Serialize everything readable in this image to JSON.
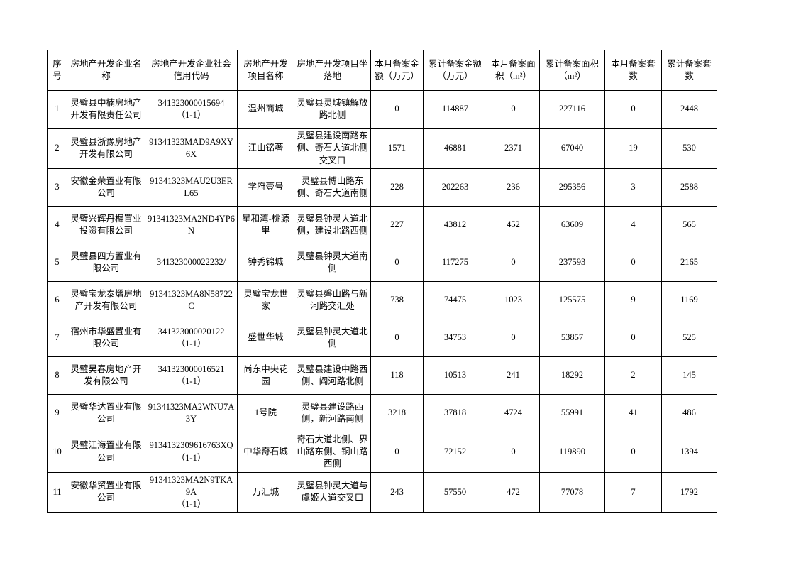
{
  "page": {
    "background_color": "#ffffff",
    "border_color": "#000000"
  },
  "table": {
    "columns": [
      {
        "key": "seq",
        "label": "序号"
      },
      {
        "key": "company",
        "label": "房地产开发企业名称"
      },
      {
        "key": "credit_code",
        "label": "房地产开发企业社会信用代码"
      },
      {
        "key": "project",
        "label": "房地产开发项目名称"
      },
      {
        "key": "location",
        "label": "房地产开发项目坐落地"
      },
      {
        "key": "month_amount",
        "label": "本月备案金额（万元）"
      },
      {
        "key": "total_amount",
        "label": "累计备案金额（万元）"
      },
      {
        "key": "month_area",
        "label": "本月备案面积（m²）"
      },
      {
        "key": "total_area",
        "label": "累计备案面积（m²）"
      },
      {
        "key": "month_units",
        "label": "本月备案套数"
      },
      {
        "key": "total_units",
        "label": "累计备案套数"
      }
    ],
    "rows": [
      {
        "seq": "1",
        "company": "灵璧县中楠房地产开发有限责任公司",
        "credit_code": "341323000015694\n（1-1）",
        "project": "温州商城",
        "location": "灵璧县灵城镇解放路北侧",
        "month_amount": "0",
        "total_amount": "114887",
        "month_area": "0",
        "total_area": "227116",
        "month_units": "0",
        "total_units": "2448"
      },
      {
        "seq": "2",
        "company": "灵璧县浙豫房地产开发有限公司",
        "credit_code": "91341323MAD9A9XY6X",
        "project": "江山铭著",
        "location": "灵璧县建设南路东侧、奇石大道北侧交叉口",
        "month_amount": "1571",
        "total_amount": "46881",
        "month_area": "2371",
        "total_area": "67040",
        "month_units": "19",
        "total_units": "530"
      },
      {
        "seq": "3",
        "company": "安徽金荣置业有限公司",
        "credit_code": "91341323MAU2U3ERL65",
        "project": "学府壹号",
        "location": "灵璧县博山路东侧、奇石大道南侧",
        "month_amount": "228",
        "total_amount": "202263",
        "month_area": "236",
        "total_area": "295356",
        "month_units": "3",
        "total_units": "2588"
      },
      {
        "seq": "4",
        "company": "灵璧兴辉丹樨置业投资有限公司",
        "credit_code": "91341323MA2ND4YP6N",
        "project": "星和湾-桃源里",
        "location": "灵璧县钟灵大道北侧，建设北路西侧",
        "month_amount": "227",
        "total_amount": "43812",
        "month_area": "452",
        "total_area": "63609",
        "month_units": "4",
        "total_units": "565"
      },
      {
        "seq": "5",
        "company": "灵璧县四方置业有限公司",
        "credit_code": "341323000022232/",
        "project": "钟秀锦城",
        "location": "灵璧县钟灵大道南侧",
        "month_amount": "0",
        "total_amount": "117275",
        "month_area": "0",
        "total_area": "237593",
        "month_units": "0",
        "total_units": "2165"
      },
      {
        "seq": "6",
        "company": "灵璧宝龙泰熠房地产开发有限公司",
        "credit_code": "91341323MA8N58722C",
        "project": "灵璧宝龙世家",
        "location": "灵璧县磐山路与新河路交汇处",
        "month_amount": "738",
        "total_amount": "74475",
        "month_area": "1023",
        "total_area": "125575",
        "month_units": "9",
        "total_units": "1169"
      },
      {
        "seq": "7",
        "company": "宿州市华盛置业有限公司",
        "credit_code": "341323000020122\n（1-1）",
        "project": "盛世华城",
        "location": "灵璧县钟灵大道北侧",
        "month_amount": "0",
        "total_amount": "34753",
        "month_area": "0",
        "total_area": "53857",
        "month_units": "0",
        "total_units": "525"
      },
      {
        "seq": "8",
        "company": "灵璧昊春房地产开发有限公司",
        "credit_code": "341323000016521\n（1-1）",
        "project": "尚东中央花园",
        "location": "灵璧县建设中路西侧、阎河路北侧",
        "month_amount": "118",
        "total_amount": "10513",
        "month_area": "241",
        "total_area": "18292",
        "month_units": "2",
        "total_units": "145"
      },
      {
        "seq": "9",
        "company": "灵璧华达置业有限公司",
        "credit_code": "91341323MA2WNU7A3Y",
        "project": "1号院",
        "location": "灵璧县建设路西侧，新河路南侧",
        "month_amount": "3218",
        "total_amount": "37818",
        "month_area": "4724",
        "total_area": "55991",
        "month_units": "41",
        "total_units": "486"
      },
      {
        "seq": "10",
        "company": "灵璧江海置业有限公司",
        "credit_code": "9134132309616763XQ\n（1-1）",
        "project": "中华奇石城",
        "location": "奇石大道北侧、界山路东侧、铜山路西侧",
        "month_amount": "0",
        "total_amount": "72152",
        "month_area": "0",
        "total_area": "119890",
        "month_units": "0",
        "total_units": "1394"
      },
      {
        "seq": "11",
        "company": "安徽华贸置业有限公司",
        "credit_code": "91341323MA2N9TKA9A\n（1-1）",
        "project": "万汇城",
        "location": "灵璧县钟灵大道与虞姬大道交叉口",
        "month_amount": "243",
        "total_amount": "57550",
        "month_area": "472",
        "total_area": "77078",
        "month_units": "7",
        "total_units": "1792"
      }
    ]
  }
}
